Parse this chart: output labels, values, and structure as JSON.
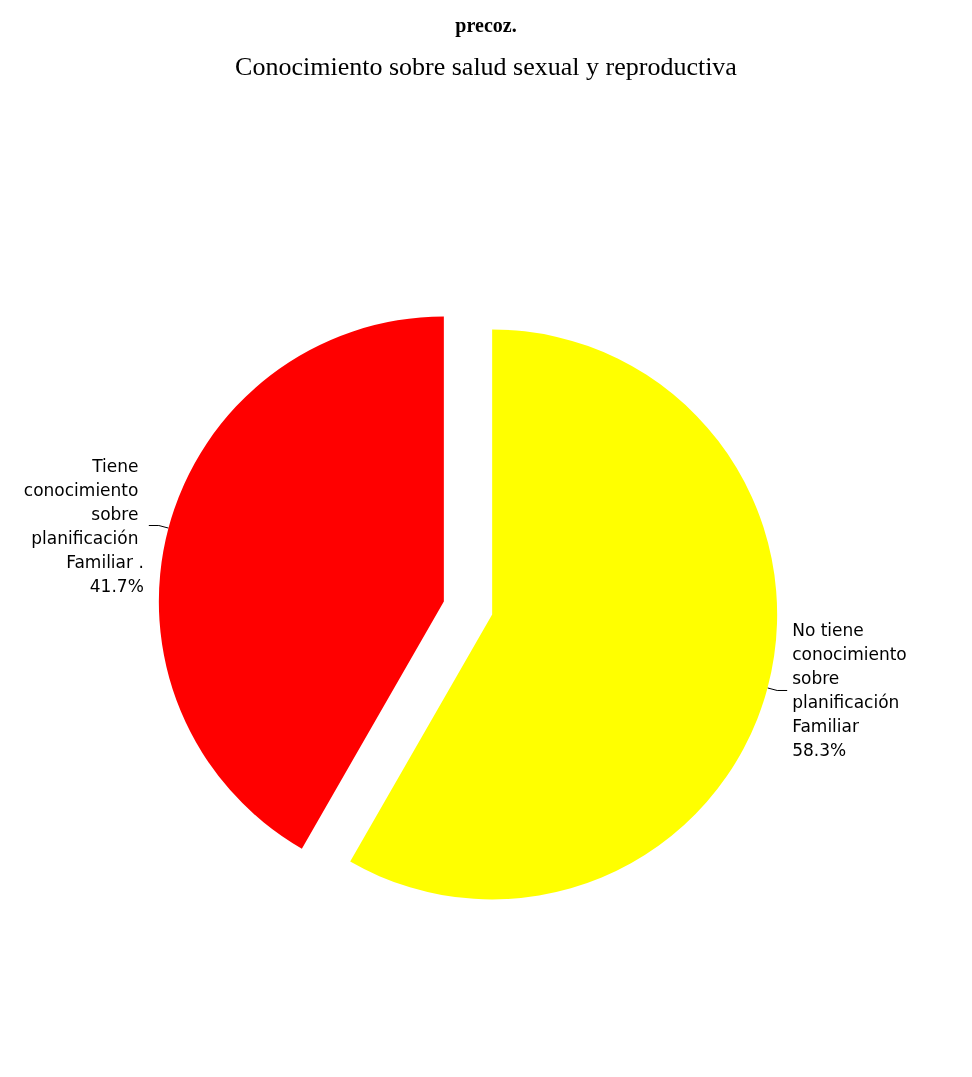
{
  "chart_data": {
    "type": "pie",
    "title": "Conocimiento sobre salud sexual y reproductiva",
    "annotations": [
      "precoz."
    ],
    "categories": [
      "No tiene conocimiento sobre planificación Familiar",
      "Tiene conocimiento sobre planificación Familiar ."
    ],
    "values": [
      58.3,
      41.7
    ],
    "colors": [
      "#ffff00",
      "#ff0000"
    ],
    "value_labels": [
      "58.3%",
      "41.7%"
    ],
    "legend": false
  }
}
